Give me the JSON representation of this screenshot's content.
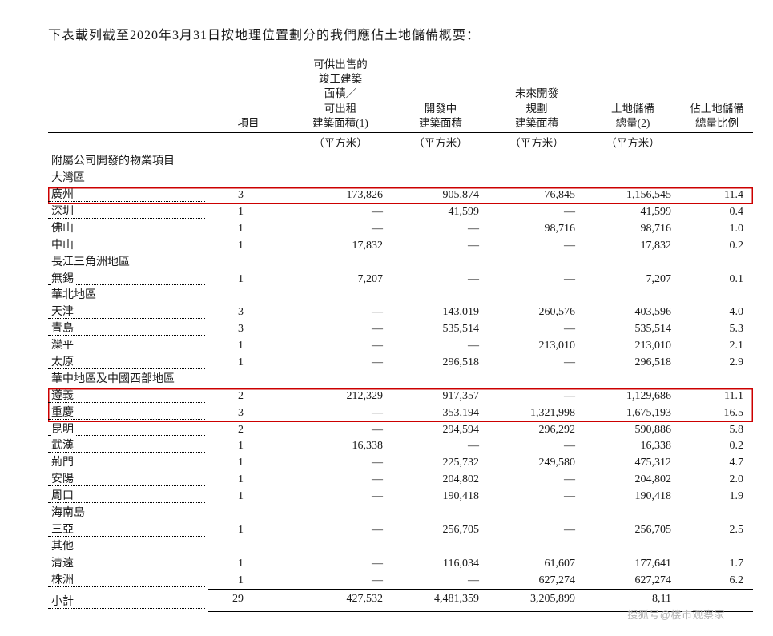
{
  "title": "下表載列截至2020年3月31日按地理位置劃分的我們應佔土地儲備概要：",
  "headers": {
    "name": "",
    "projects": "項目",
    "col1": "可供出售的\n竣工建築\n面積／\n可出租\n建築面積(1)",
    "col2": "開發中\n建築面積",
    "col3": "未來開發\n規劃\n建築面積",
    "col4": "土地儲備\n總量(2)",
    "col5": "佔土地儲備\n總量比例"
  },
  "unit": "（平方米）",
  "section_header": "附屬公司開發的物業項目",
  "groups": [
    {
      "title": "大灣區",
      "rows": [
        {
          "name": "廣州",
          "projects": "3",
          "c1": "173,826",
          "c2": "905,874",
          "c3": "76,845",
          "c4": "1,156,545",
          "c5": "11.4",
          "highlight": "single"
        },
        {
          "name": "深圳",
          "projects": "1",
          "c1": "—",
          "c2": "41,599",
          "c3": "—",
          "c4": "41,599",
          "c5": "0.4"
        },
        {
          "name": "佛山",
          "projects": "1",
          "c1": "—",
          "c2": "—",
          "c3": "98,716",
          "c4": "98,716",
          "c5": "1.0"
        },
        {
          "name": "中山",
          "projects": "1",
          "c1": "17,832",
          "c2": "—",
          "c3": "—",
          "c4": "17,832",
          "c5": "0.2"
        }
      ]
    },
    {
      "title": "長江三角洲地區",
      "rows": [
        {
          "name": "無錫",
          "projects": "1",
          "c1": "7,207",
          "c2": "—",
          "c3": "—",
          "c4": "7,207",
          "c5": "0.1"
        }
      ]
    },
    {
      "title": "華北地區",
      "rows": [
        {
          "name": "天津",
          "projects": "3",
          "c1": "—",
          "c2": "143,019",
          "c3": "260,576",
          "c4": "403,596",
          "c5": "4.0"
        },
        {
          "name": "青島",
          "projects": "3",
          "c1": "—",
          "c2": "535,514",
          "c3": "—",
          "c4": "535,514",
          "c5": "5.3"
        },
        {
          "name": "灤平",
          "projects": "1",
          "c1": "—",
          "c2": "—",
          "c3": "213,010",
          "c4": "213,010",
          "c5": "2.1"
        },
        {
          "name": "太原",
          "projects": "1",
          "c1": "—",
          "c2": "296,518",
          "c3": "—",
          "c4": "296,518",
          "c5": "2.9"
        }
      ]
    },
    {
      "title": "華中地區及中國西部地區",
      "rows": [
        {
          "name": "遵義",
          "projects": "2",
          "c1": "212,329",
          "c2": "917,357",
          "c3": "—",
          "c4": "1,129,686",
          "c5": "11.1",
          "highlight": "top"
        },
        {
          "name": "重慶",
          "projects": "3",
          "c1": "—",
          "c2": "353,194",
          "c3": "1,321,998",
          "c4": "1,675,193",
          "c5": "16.5",
          "highlight": "bot"
        },
        {
          "name": "昆明",
          "projects": "2",
          "c1": "—",
          "c2": "294,594",
          "c3": "296,292",
          "c4": "590,886",
          "c5": "5.8"
        },
        {
          "name": "武漢",
          "projects": "1",
          "c1": "16,338",
          "c2": "—",
          "c3": "—",
          "c4": "16,338",
          "c5": "0.2"
        },
        {
          "name": "荊門",
          "projects": "1",
          "c1": "—",
          "c2": "225,732",
          "c3": "249,580",
          "c4": "475,312",
          "c5": "4.7"
        },
        {
          "name": "安陽",
          "projects": "1",
          "c1": "—",
          "c2": "204,802",
          "c3": "—",
          "c4": "204,802",
          "c5": "2.0"
        },
        {
          "name": "周口",
          "projects": "1",
          "c1": "—",
          "c2": "190,418",
          "c3": "—",
          "c4": "190,418",
          "c5": "1.9"
        }
      ]
    },
    {
      "title": "海南島",
      "rows": [
        {
          "name": "三亞",
          "projects": "1",
          "c1": "—",
          "c2": "256,705",
          "c3": "—",
          "c4": "256,705",
          "c5": "2.5"
        }
      ]
    },
    {
      "title": "其他",
      "rows": [
        {
          "name": "清遠",
          "projects": "1",
          "c1": "—",
          "c2": "116,034",
          "c3": "61,607",
          "c4": "177,641",
          "c5": "1.7"
        },
        {
          "name": "株洲",
          "projects": "1",
          "c1": "—",
          "c2": "—",
          "c3": "627,274",
          "c4": "627,274",
          "c5": "6.2"
        }
      ]
    }
  ],
  "subtotal": {
    "name": "小計",
    "projects": "29",
    "c1": "427,532",
    "c2": "4,481,359",
    "c3": "3,205,899",
    "c4": "8,11",
    "c5": ""
  },
  "watermark": "搜狐号@楼市观察家",
  "colors": {
    "text": "#1a1a1a",
    "highlight_border": "#c00",
    "watermark": "#b5b5b5",
    "background": "#ffffff"
  }
}
